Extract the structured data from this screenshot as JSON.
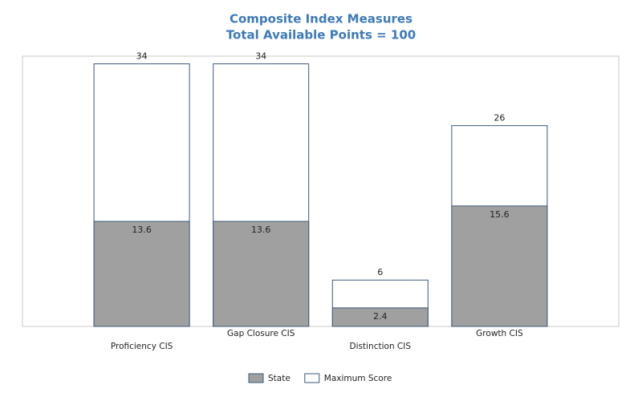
{
  "chart_data": {
    "type": "bar",
    "title": "Composite Index Measures",
    "subtitle": "Total Available Points = 100",
    "categories": [
      "Proficiency CIS",
      "Gap Closure CIS",
      "Distinction CIS",
      "Growth CIS"
    ],
    "series": [
      {
        "name": "State",
        "color": "#a0a0a0",
        "values": [
          13.6,
          13.6,
          2.4,
          15.6
        ]
      },
      {
        "name": "Maximum Score",
        "color": "#ffffff",
        "values": [
          34,
          34,
          6,
          26
        ]
      }
    ],
    "ylim": [
      0,
      35
    ],
    "legend": "bottom"
  }
}
